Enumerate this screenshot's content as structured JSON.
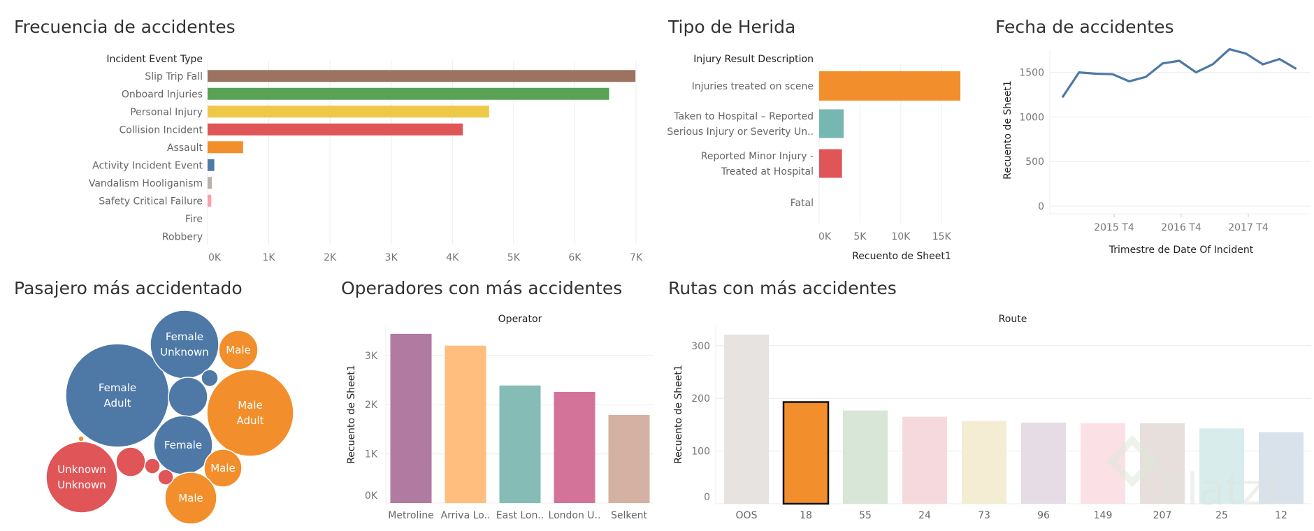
{
  "panels": {
    "frecuencia": "Frecuencia de accidentes",
    "herida": "Tipo de Herida",
    "fecha": "Fecha de accidentes",
    "pasajero": "Pasajero más accidentado",
    "operadores": "Operadores con más accidentes",
    "rutas": "Rutas con más accidentes"
  },
  "watermark": "Platzi",
  "chart_data": [
    {
      "id": "frecuencia",
      "type": "bar",
      "orientation": "horizontal",
      "category_header": "Incident Event Type",
      "categories": [
        "Slip Trip Fall",
        "Onboard Injuries",
        "Personal Injury",
        "Collision Incident",
        "Assault",
        "Activity Incident Event",
        "Vandalism Hooliganism",
        "Safety Critical Failure",
        "Fire",
        "Robbery"
      ],
      "values": [
        6990,
        6560,
        4600,
        4170,
        580,
        110,
        70,
        60,
        0,
        0
      ],
      "colors": [
        "#9c7360",
        "#58a155",
        "#eec948",
        "#e05557",
        "#f28e2b",
        "#4e79a7",
        "#bab0ac",
        "#ff9da7",
        "#9c7360",
        "#9c7360"
      ],
      "xlim": [
        0,
        7000
      ],
      "xticks": [
        "0K",
        "1K",
        "2K",
        "3K",
        "4K",
        "5K",
        "6K",
        "7K"
      ]
    },
    {
      "id": "herida",
      "type": "bar",
      "orientation": "horizontal",
      "category_header": "Injury Result Description",
      "categories": [
        [
          "Injuries treated on scene"
        ],
        [
          "Taken to Hospital – Reported",
          "Serious Injury or Severity Un.."
        ],
        [
          "Reported Minor Injury -",
          "Treated at Hospital"
        ],
        [
          "Fatal"
        ]
      ],
      "values": [
        17300,
        3000,
        2800,
        40
      ],
      "colors": [
        "#f28e2b",
        "#76b7b2",
        "#e05557",
        "#e05557"
      ],
      "xticks": [
        "0K",
        "5K",
        "10K",
        "15K"
      ],
      "xlabel": "Recuento de Sheet1"
    },
    {
      "id": "fecha",
      "type": "line",
      "values": [
        1220,
        1500,
        1485,
        1480,
        1400,
        1450,
        1600,
        1630,
        1500,
        1590,
        1760,
        1710,
        1590,
        1650,
        1540
      ],
      "color": "#4e79a7",
      "yticks": [
        "0",
        "500",
        "1000",
        "1500"
      ],
      "ylim": [
        0,
        1800
      ],
      "xticks": [
        "2015 T4",
        "2016 T4",
        "2017 T4"
      ],
      "xlabel": "Trimestre de Date Of Incident",
      "ylabel": "Recuento de Sheet1"
    },
    {
      "id": "pasajero",
      "type": "bubble",
      "bubbles": [
        {
          "label": [
            "Female",
            "Adult"
          ],
          "color": "#4e79a7"
        },
        {
          "label": [
            "Female",
            "Unknown"
          ],
          "color": "#4e79a7"
        },
        {
          "label": [
            "Male"
          ],
          "color": "#f28e2b"
        },
        {
          "label": [
            "Male",
            "Adult"
          ],
          "color": "#f28e2b"
        },
        {
          "label": [],
          "color": "#4e79a7"
        },
        {
          "label": [],
          "color": "#4e79a7"
        },
        {
          "label": [
            "Female"
          ],
          "color": "#4e79a7"
        },
        {
          "label": [
            "Male"
          ],
          "color": "#f28e2b"
        },
        {
          "label": [
            "Unknown",
            "Unknown"
          ],
          "color": "#e05557"
        },
        {
          "label": [],
          "color": "#e05557"
        },
        {
          "label": [],
          "color": "#e05557"
        },
        {
          "label": [],
          "color": "#f28e2b"
        },
        {
          "label": [
            "Male"
          ],
          "color": "#f28e2b"
        },
        {
          "label": [],
          "color": "#e05557"
        }
      ]
    },
    {
      "id": "operadores",
      "type": "bar",
      "header": "Operator",
      "categories": [
        "Metroline",
        "Arriva Lo..",
        "East Lon..",
        "London U..",
        "Selkent"
      ],
      "values": [
        3440,
        3200,
        2390,
        2260,
        1790
      ],
      "colors": [
        "#b07aa1",
        "#ffbe7d",
        "#86bcb6",
        "#d4739a",
        "#d4b1a2"
      ],
      "ylim": [
        0,
        3500
      ],
      "yticks": [
        "0K",
        "1K",
        "2K",
        "3K"
      ],
      "ylabel": "Recuento de Sheet1"
    },
    {
      "id": "rutas",
      "type": "bar",
      "header": "Route",
      "categories": [
        "OOS",
        "18",
        "55",
        "24",
        "73",
        "96",
        "149",
        "207",
        "25",
        "12"
      ],
      "values": [
        321,
        193,
        177,
        165,
        157,
        154,
        153,
        153,
        143,
        136
      ],
      "colors": [
        "#e6e3e1",
        "#f28e2b",
        "#d7e6d6",
        "#f6d9dc",
        "#f4ecd3",
        "#e5dce6",
        "#fbe0e6",
        "#e6dfdc",
        "#d8ecec",
        "#d9e1ea"
      ],
      "highlight_index": 1,
      "ylim": [
        0,
        330
      ],
      "yticks": [
        "0",
        "100",
        "200",
        "300"
      ],
      "ylabel": "Recuento de Sheet1"
    }
  ]
}
